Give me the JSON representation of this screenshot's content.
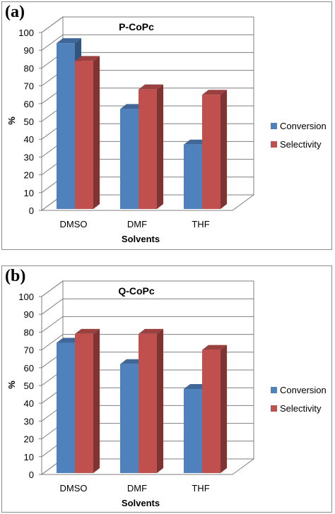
{
  "chart_data": [
    {
      "panel_label": "(a)",
      "type": "bar",
      "title": "P-CoPc",
      "xlabel": "Solvents",
      "ylabel": "%",
      "ylim": [
        0,
        100
      ],
      "yticks": [
        "0",
        "10",
        "20",
        "30",
        "40",
        "50",
        "60",
        "70",
        "80",
        "90",
        "100"
      ],
      "categories": [
        "DMSO",
        "DMF",
        "THF"
      ],
      "series": [
        {
          "name": "Conversion",
          "values": [
            94,
            57,
            37
          ],
          "color": "#4F81BD"
        },
        {
          "name": "Selectivity",
          "values": [
            84,
            68,
            65
          ],
          "color": "#C0504D"
        }
      ],
      "grid": true,
      "legend_position": "right",
      "style": "3d-column"
    },
    {
      "panel_label": "(b)",
      "type": "bar",
      "title": "Q-CoPc",
      "xlabel": "Solvents",
      "ylabel": "%",
      "ylim": [
        0,
        100
      ],
      "yticks": [
        "0",
        "10",
        "20",
        "30",
        "40",
        "50",
        "60",
        "70",
        "80",
        "90",
        "100"
      ],
      "categories": [
        "DMSO",
        "DMF",
        "THF"
      ],
      "series": [
        {
          "name": "Conversion",
          "values": [
            74,
            62,
            48
          ],
          "color": "#4F81BD"
        },
        {
          "name": "Selectivity",
          "values": [
            79,
            79,
            70
          ],
          "color": "#C0504D"
        }
      ],
      "grid": true,
      "legend_position": "right",
      "style": "3d-column"
    }
  ]
}
